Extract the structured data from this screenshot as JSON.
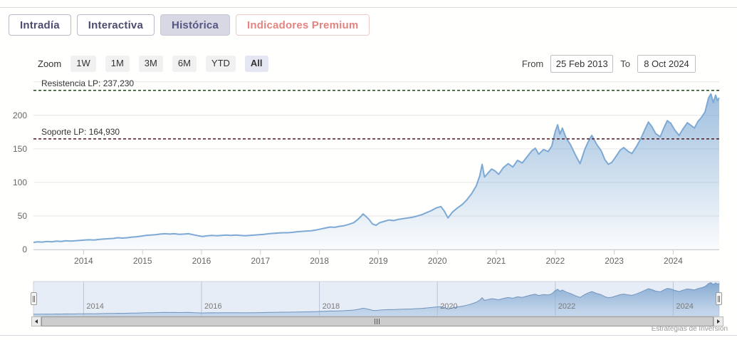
{
  "tabs": [
    {
      "label": "Intradía"
    },
    {
      "label": "Interactiva"
    },
    {
      "label": "Histórica"
    },
    {
      "label": "Indicadores Premium"
    }
  ],
  "active_tab": "Histórica",
  "toolbar": {
    "zoom_label": "Zoom",
    "zoom_buttons": [
      "1W",
      "1M",
      "3M",
      "6M",
      "YTD",
      "All"
    ],
    "zoom_selected": "All",
    "from_label": "From",
    "from_value": "25 Feb 2013",
    "to_label": "To",
    "to_value": "8 Oct 2024"
  },
  "credit": "Estrategias de Inversión",
  "colors": {
    "series_line": "#7da9d4",
    "resistance": "#2f5328",
    "support": "#5e2836",
    "grid": "#e6e6e6",
    "axis": "#cccccc"
  },
  "chart_data": {
    "type": "area",
    "title": "",
    "xlabel": "",
    "ylabel": "",
    "legend": "none",
    "grid": "horizontal",
    "xlim": [
      2013.15,
      2024.78
    ],
    "ylim": [
      0,
      254
    ],
    "ygrid": [
      0,
      50,
      100,
      150,
      200,
      250
    ],
    "yticks": [
      0,
      50,
      100,
      150,
      200
    ],
    "xticks": [
      2014,
      2015,
      2016,
      2017,
      2018,
      2019,
      2020,
      2021,
      2022,
      2023,
      2024
    ],
    "plotlines": [
      {
        "label": "Resistencia LP: 237,230",
        "value": 237.23,
        "color": "#2f5328"
      },
      {
        "label": "Soporte LP: 164,930",
        "value": 164.93,
        "color": "#5e2836"
      }
    ],
    "series": [
      {
        "name": "price",
        "points": [
          [
            2013.15,
            10.5
          ],
          [
            2013.22,
            11.5
          ],
          [
            2013.3,
            11
          ],
          [
            2013.38,
            12
          ],
          [
            2013.46,
            11.5
          ],
          [
            2013.54,
            12.5
          ],
          [
            2013.62,
            12
          ],
          [
            2013.7,
            13
          ],
          [
            2013.78,
            12.5
          ],
          [
            2013.86,
            13
          ],
          [
            2013.94,
            13.5
          ],
          [
            2014.02,
            14
          ],
          [
            2014.1,
            14.5
          ],
          [
            2014.18,
            14
          ],
          [
            2014.26,
            15
          ],
          [
            2014.34,
            15.5
          ],
          [
            2014.42,
            16
          ],
          [
            2014.5,
            16.5
          ],
          [
            2014.58,
            17.5
          ],
          [
            2014.66,
            17
          ],
          [
            2014.74,
            17.5
          ],
          [
            2014.82,
            18.5
          ],
          [
            2014.9,
            19
          ],
          [
            2014.98,
            20
          ],
          [
            2015.06,
            21
          ],
          [
            2015.14,
            21.5
          ],
          [
            2015.22,
            22
          ],
          [
            2015.3,
            23
          ],
          [
            2015.38,
            23.5
          ],
          [
            2015.46,
            23
          ],
          [
            2015.54,
            23.5
          ],
          [
            2015.62,
            22.5
          ],
          [
            2015.7,
            23
          ],
          [
            2015.78,
            23.5
          ],
          [
            2015.86,
            22
          ],
          [
            2015.94,
            20.5
          ],
          [
            2016.02,
            19.5
          ],
          [
            2016.1,
            20.5
          ],
          [
            2016.18,
            21
          ],
          [
            2016.26,
            20.5
          ],
          [
            2016.34,
            21
          ],
          [
            2016.42,
            21.5
          ],
          [
            2016.5,
            21
          ],
          [
            2016.58,
            21.5
          ],
          [
            2016.66,
            21
          ],
          [
            2016.74,
            20.5
          ],
          [
            2016.82,
            21
          ],
          [
            2016.9,
            21.5
          ],
          [
            2016.98,
            22
          ],
          [
            2017.06,
            22.5
          ],
          [
            2017.14,
            23.5
          ],
          [
            2017.22,
            24
          ],
          [
            2017.3,
            24.5
          ],
          [
            2017.38,
            25
          ],
          [
            2017.46,
            25
          ],
          [
            2017.54,
            25.5
          ],
          [
            2017.62,
            26.5
          ],
          [
            2017.7,
            27
          ],
          [
            2017.78,
            27.5
          ],
          [
            2017.86,
            28
          ],
          [
            2017.94,
            29
          ],
          [
            2018.02,
            30.5
          ],
          [
            2018.1,
            32
          ],
          [
            2018.18,
            33.5
          ],
          [
            2018.26,
            33
          ],
          [
            2018.34,
            34.5
          ],
          [
            2018.42,
            35.5
          ],
          [
            2018.5,
            37.5
          ],
          [
            2018.58,
            40
          ],
          [
            2018.64,
            44
          ],
          [
            2018.7,
            49
          ],
          [
            2018.74,
            53
          ],
          [
            2018.78,
            50
          ],
          [
            2018.84,
            45
          ],
          [
            2018.9,
            38
          ],
          [
            2018.96,
            36
          ],
          [
            2019.02,
            40
          ],
          [
            2019.1,
            42
          ],
          [
            2019.18,
            44
          ],
          [
            2019.26,
            43
          ],
          [
            2019.34,
            45
          ],
          [
            2019.42,
            46
          ],
          [
            2019.5,
            47
          ],
          [
            2019.58,
            48
          ],
          [
            2019.66,
            50
          ],
          [
            2019.74,
            52
          ],
          [
            2019.82,
            55
          ],
          [
            2019.9,
            58
          ],
          [
            2019.98,
            62
          ],
          [
            2020.06,
            64
          ],
          [
            2020.12,
            57
          ],
          [
            2020.18,
            47
          ],
          [
            2020.26,
            56
          ],
          [
            2020.34,
            62
          ],
          [
            2020.42,
            67
          ],
          [
            2020.5,
            74
          ],
          [
            2020.58,
            83
          ],
          [
            2020.66,
            95
          ],
          [
            2020.72,
            110
          ],
          [
            2020.76,
            127
          ],
          [
            2020.8,
            108
          ],
          [
            2020.86,
            114
          ],
          [
            2020.92,
            120
          ],
          [
            2020.98,
            117
          ],
          [
            2021.04,
            112
          ],
          [
            2021.12,
            122
          ],
          [
            2021.2,
            128
          ],
          [
            2021.28,
            123
          ],
          [
            2021.36,
            133
          ],
          [
            2021.44,
            129
          ],
          [
            2021.52,
            138
          ],
          [
            2021.6,
            147
          ],
          [
            2021.66,
            151
          ],
          [
            2021.72,
            142
          ],
          [
            2021.8,
            149
          ],
          [
            2021.88,
            146
          ],
          [
            2021.94,
            154
          ],
          [
            2022.0,
            176
          ],
          [
            2022.04,
            186
          ],
          [
            2022.08,
            172
          ],
          [
            2022.12,
            181
          ],
          [
            2022.18,
            167
          ],
          [
            2022.26,
            156
          ],
          [
            2022.34,
            141
          ],
          [
            2022.42,
            128
          ],
          [
            2022.5,
            149
          ],
          [
            2022.56,
            161
          ],
          [
            2022.62,
            170
          ],
          [
            2022.7,
            157
          ],
          [
            2022.78,
            147
          ],
          [
            2022.84,
            134
          ],
          [
            2022.9,
            127
          ],
          [
            2022.96,
            130
          ],
          [
            2023.04,
            140
          ],
          [
            2023.1,
            148
          ],
          [
            2023.16,
            152
          ],
          [
            2023.24,
            146
          ],
          [
            2023.3,
            143
          ],
          [
            2023.38,
            154
          ],
          [
            2023.46,
            167
          ],
          [
            2023.52,
            179
          ],
          [
            2023.58,
            190
          ],
          [
            2023.64,
            183
          ],
          [
            2023.7,
            173
          ],
          [
            2023.78,
            168
          ],
          [
            2023.84,
            181
          ],
          [
            2023.9,
            192
          ],
          [
            2023.96,
            188
          ],
          [
            2024.02,
            179
          ],
          [
            2024.1,
            170
          ],
          [
            2024.16,
            179
          ],
          [
            2024.24,
            189
          ],
          [
            2024.3,
            185
          ],
          [
            2024.36,
            181
          ],
          [
            2024.42,
            191
          ],
          [
            2024.48,
            197
          ],
          [
            2024.54,
            205
          ],
          [
            2024.6,
            226
          ],
          [
            2024.64,
            232
          ],
          [
            2024.68,
            219
          ],
          [
            2024.72,
            230
          ],
          [
            2024.75,
            222
          ],
          [
            2024.78,
            226
          ]
        ]
      }
    ],
    "navigator": {
      "ylim": [
        0,
        240
      ],
      "xticks": [
        2014,
        2016,
        2018,
        2020,
        2022,
        2024
      ]
    }
  }
}
